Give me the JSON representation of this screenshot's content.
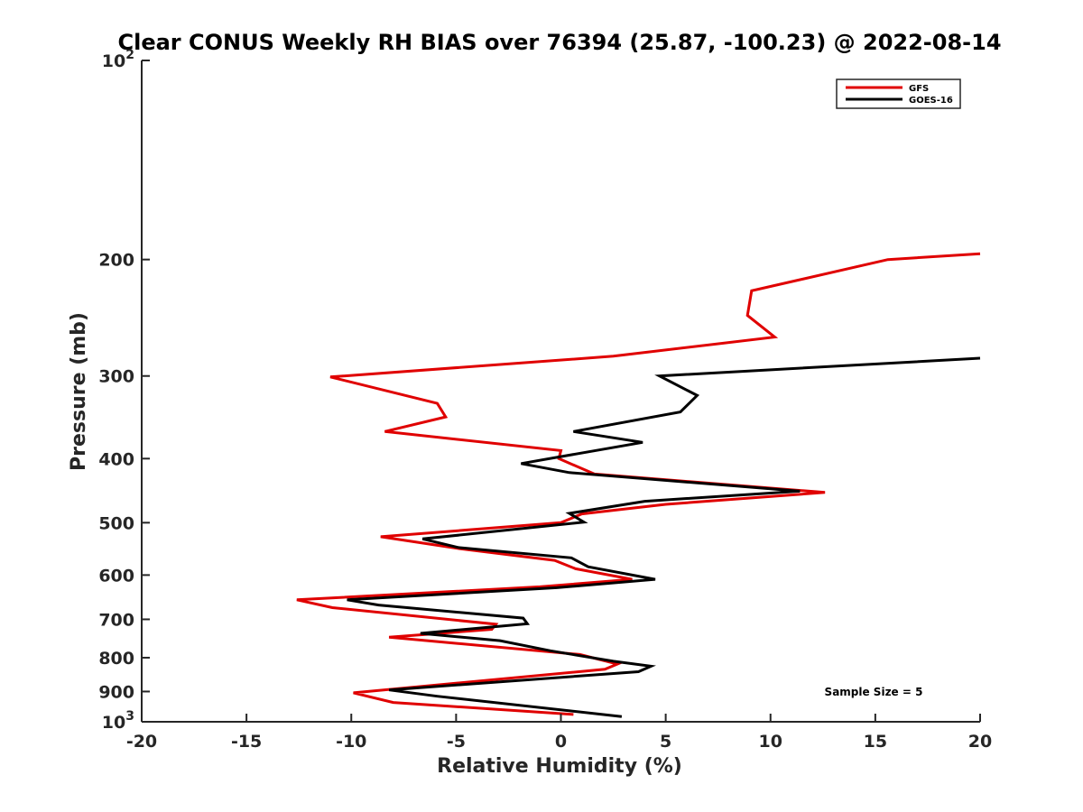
{
  "chart_data": {
    "type": "line",
    "title": "Clear CONUS Weekly RH BIAS over 76394 (25.87, -100.23) @ 2022-08-14",
    "xlabel": "Relative Humidity (%)",
    "ylabel": "Pressure (mb)",
    "xlim": [
      -20,
      20
    ],
    "ylim": [
      100,
      1000
    ],
    "y_scale": "log",
    "y_reversed": true,
    "grid": false,
    "legend_placement": "top-right",
    "x_ticks": [
      "-20",
      "-15",
      "-10",
      "-5",
      "0",
      "5",
      "10",
      "15",
      "20"
    ],
    "y_ticks": [
      {
        "value": 100,
        "base": "10",
        "exp": "2"
      },
      {
        "value": 200,
        "label": "200"
      },
      {
        "value": 300,
        "label": "300"
      },
      {
        "value": 400,
        "label": "400"
      },
      {
        "value": 500,
        "label": "500"
      },
      {
        "value": 600,
        "label": "600"
      },
      {
        "value": 700,
        "label": "700"
      },
      {
        "value": 800,
        "label": "800"
      },
      {
        "value": 900,
        "label": "900"
      },
      {
        "value": 1000,
        "base": "10",
        "exp": "3"
      }
    ],
    "series": [
      {
        "name": "GFS",
        "color": "#e00000",
        "points": [
          [
            20,
            196
          ],
          [
            15.6,
            200
          ],
          [
            9.1,
            223
          ],
          [
            8.9,
            243
          ],
          [
            10.2,
            262
          ],
          [
            2.5,
            280
          ],
          [
            -11.0,
            301
          ],
          [
            -5.9,
            330
          ],
          [
            -5.5,
            346
          ],
          [
            -8.4,
            364
          ],
          [
            0,
            389
          ],
          [
            -0.1,
            400
          ],
          [
            1.6,
            422
          ],
          [
            12.6,
            450
          ],
          [
            5.0,
            469
          ],
          [
            1.0,
            485
          ],
          [
            0,
            500
          ],
          [
            -8.6,
            525
          ],
          [
            -4.9,
            547
          ],
          [
            -0.3,
            570
          ],
          [
            0.7,
            587
          ],
          [
            3.4,
            609
          ],
          [
            -1.0,
            625
          ],
          [
            -12.6,
            654
          ],
          [
            -10.9,
            672
          ],
          [
            -3.1,
            712
          ],
          [
            -3.3,
            725
          ],
          [
            -8.2,
            745
          ],
          [
            0.9,
            791
          ],
          [
            2.7,
            818
          ],
          [
            2.1,
            833
          ],
          [
            -9.9,
            904
          ],
          [
            -8.0,
            935
          ],
          [
            0.6,
            975
          ]
        ]
      },
      {
        "name": "GOES-16",
        "color": "#000000",
        "points": [
          [
            20,
            282
          ],
          [
            4.7,
            300
          ],
          [
            6.5,
            321
          ],
          [
            5.7,
            340
          ],
          [
            0.6,
            364
          ],
          [
            3.9,
            378
          ],
          [
            -1.9,
            407
          ],
          [
            0.4,
            420
          ],
          [
            11.4,
            448
          ],
          [
            4.0,
            464
          ],
          [
            0.4,
            484
          ],
          [
            1.1,
            499
          ],
          [
            -6.6,
            529
          ],
          [
            -4.9,
            545
          ],
          [
            0.5,
            565
          ],
          [
            1.3,
            583
          ],
          [
            4.5,
            609
          ],
          [
            -0.2,
            627
          ],
          [
            -10.2,
            654
          ],
          [
            -8.7,
            666
          ],
          [
            -1.8,
            697
          ],
          [
            -1.6,
            711
          ],
          [
            -6.7,
            735
          ],
          [
            -2.9,
            754
          ],
          [
            -0.5,
            781
          ],
          [
            2.5,
            810
          ],
          [
            4.3,
            824
          ],
          [
            3.7,
            840
          ],
          [
            -8.2,
            895
          ],
          [
            -5.9,
            915
          ],
          [
            2.9,
            982
          ]
        ]
      }
    ],
    "annotation": "Sample Size = 5"
  }
}
